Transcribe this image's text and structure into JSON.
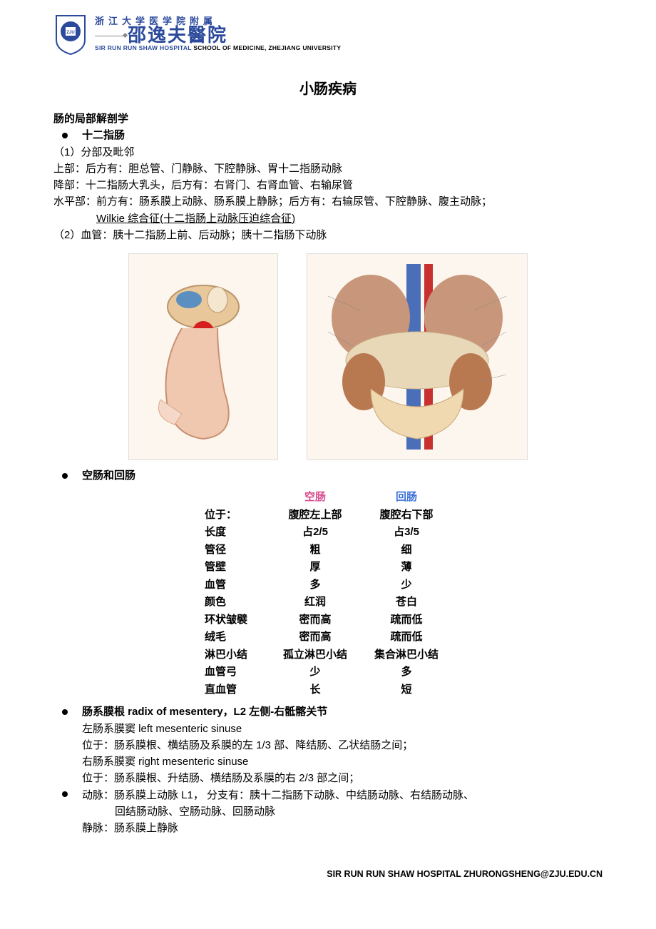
{
  "header": {
    "line1": "浙江大学医学院附属",
    "line2": "邵逸夫醫院",
    "line3_blue": "SIR RUN RUN SHAW HOSPITAL",
    "line3_black": "SCHOOL OF MEDICINE, ZHEJIANG UNIVERSITY"
  },
  "title": "小肠疾病",
  "section1": {
    "heading": "肠的局部解剖学",
    "bullet1": "十二指肠",
    "sub1_label": "（1）分部及毗邻",
    "line_upper": "上部：后方有：胆总管、门静脉、下腔静脉、胃十二指肠动脉",
    "line_desc": "降部：十二指肠大乳头，后方有：右肾门、右肾血管、右输尿管",
    "line_horiz": "水平部：前方有：肠系膜上动脉、肠系膜上静脉；后方有：右输尿管、下腔静脉、腹主动脉；",
    "wilkie": "Wilkie 综合征(十二指肠上动脉压迫综合征)",
    "sub2_label": "（2）血管：胰十二指肠上前、后动脉；胰十二指肠下动脉"
  },
  "images": {
    "img1_alt": "duodenum anatomical illustration",
    "img2_alt": "abdominal vessels anatomical illustration"
  },
  "section2": {
    "bullet": "空肠和回肠"
  },
  "table": {
    "header_col1": "空肠",
    "header_col2": "回肠",
    "rows": [
      {
        "label": "位于：",
        "c1": "腹腔左上部",
        "c2": "腹腔右下部"
      },
      {
        "label": "长度",
        "c1": "占2/5",
        "c2": "占3/5"
      },
      {
        "label": "管径",
        "c1": "粗",
        "c2": "细"
      },
      {
        "label": "管壁",
        "c1": "厚",
        "c2": "薄"
      },
      {
        "label": "血管",
        "c1": "多",
        "c2": "少"
      },
      {
        "label": "颜色",
        "c1": "红润",
        "c2": "苍白"
      },
      {
        "label": "环状皱襞",
        "c1": "密而高",
        "c2": "疏而低"
      },
      {
        "label": "绒毛",
        "c1": "密而高",
        "c2": "疏而低"
      },
      {
        "label": "淋巴小结",
        "c1": "孤立淋巴小结",
        "c2": "集合淋巴小结"
      },
      {
        "label": "血管弓",
        "c1": "少",
        "c2": "多"
      },
      {
        "label": "直血管",
        "c1": "长",
        "c2": "短"
      }
    ]
  },
  "section3": {
    "bullet": "肠系膜根 radix of mesentery，L2 左侧-右骶髂关节",
    "l1": "左肠系膜窦 left mesenteric sinuse",
    "l2": "位于：肠系膜根、横结肠及系膜的左 1/3 部、降结肠、乙状结肠之间；",
    "l3": "右肠系膜窦 right mesenteric sinuse",
    "l4": "位于：肠系膜根、升结肠、横结肠及系膜的右 2/3 部之间；"
  },
  "section4": {
    "bullet": "动脉：肠系膜上动脉 L1， 分支有：胰十二指肠下动脉、中结肠动脉、右结肠动脉、",
    "l1": "回结肠动脉、空肠动脉、回肠动脉",
    "l2": "静脉：肠系膜上静脉"
  },
  "footer": "SIR RUN RUN SHAW HOSPITAL ZHURONGSHENG@ZJU.EDU.CN"
}
